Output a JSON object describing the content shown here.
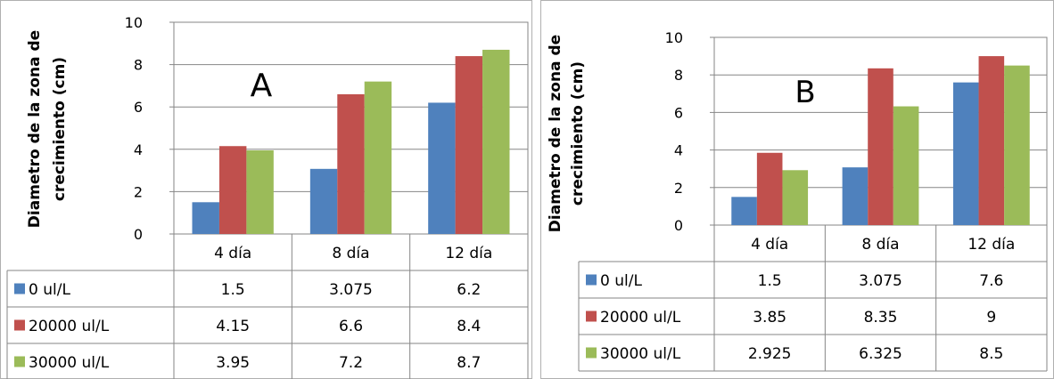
{
  "chart_data": [
    {
      "type": "bar",
      "annotation": "A",
      "ylabel": "Diametro de la zona de crecimiento (cm)",
      "ylabel_lines": [
        "Diametro de la zona de",
        "crecimiento (cm)"
      ],
      "categories": [
        "4 día",
        "8 día",
        "12 día"
      ],
      "ylim": [
        0,
        10
      ],
      "yticks": [
        0,
        2,
        4,
        6,
        8,
        10
      ],
      "grid": true,
      "legend": "data-table",
      "series": [
        {
          "name": "0 ul/L",
          "color": "#4F81BD",
          "values": [
            1.5,
            3.075,
            6.2
          ]
        },
        {
          "name": "20000 ul/L",
          "color": "#C0504D",
          "values": [
            4.15,
            6.6,
            8.4
          ]
        },
        {
          "name": "30000 ul/L",
          "color": "#9BBB59",
          "values": [
            3.95,
            7.2,
            8.7
          ]
        }
      ]
    },
    {
      "type": "bar",
      "annotation": "B",
      "ylabel": "Diametro de la zona de crecimiento (cm)",
      "ylabel_lines": [
        "Diametro de la zona de",
        "crecimiento (cm)"
      ],
      "categories": [
        "4 día",
        "8 día",
        "12 día"
      ],
      "ylim": [
        0,
        10
      ],
      "yticks": [
        0,
        2,
        4,
        6,
        8,
        10
      ],
      "grid": true,
      "legend": "data-table",
      "series": [
        {
          "name": "0 ul/L",
          "color": "#4F81BD",
          "values": [
            1.5,
            3.075,
            7.6
          ]
        },
        {
          "name": "20000 ul/L",
          "color": "#C0504D",
          "values": [
            3.85,
            8.35,
            9
          ]
        },
        {
          "name": "30000 ul/L",
          "color": "#9BBB59",
          "values": [
            2.925,
            6.325,
            8.5
          ]
        }
      ]
    }
  ]
}
